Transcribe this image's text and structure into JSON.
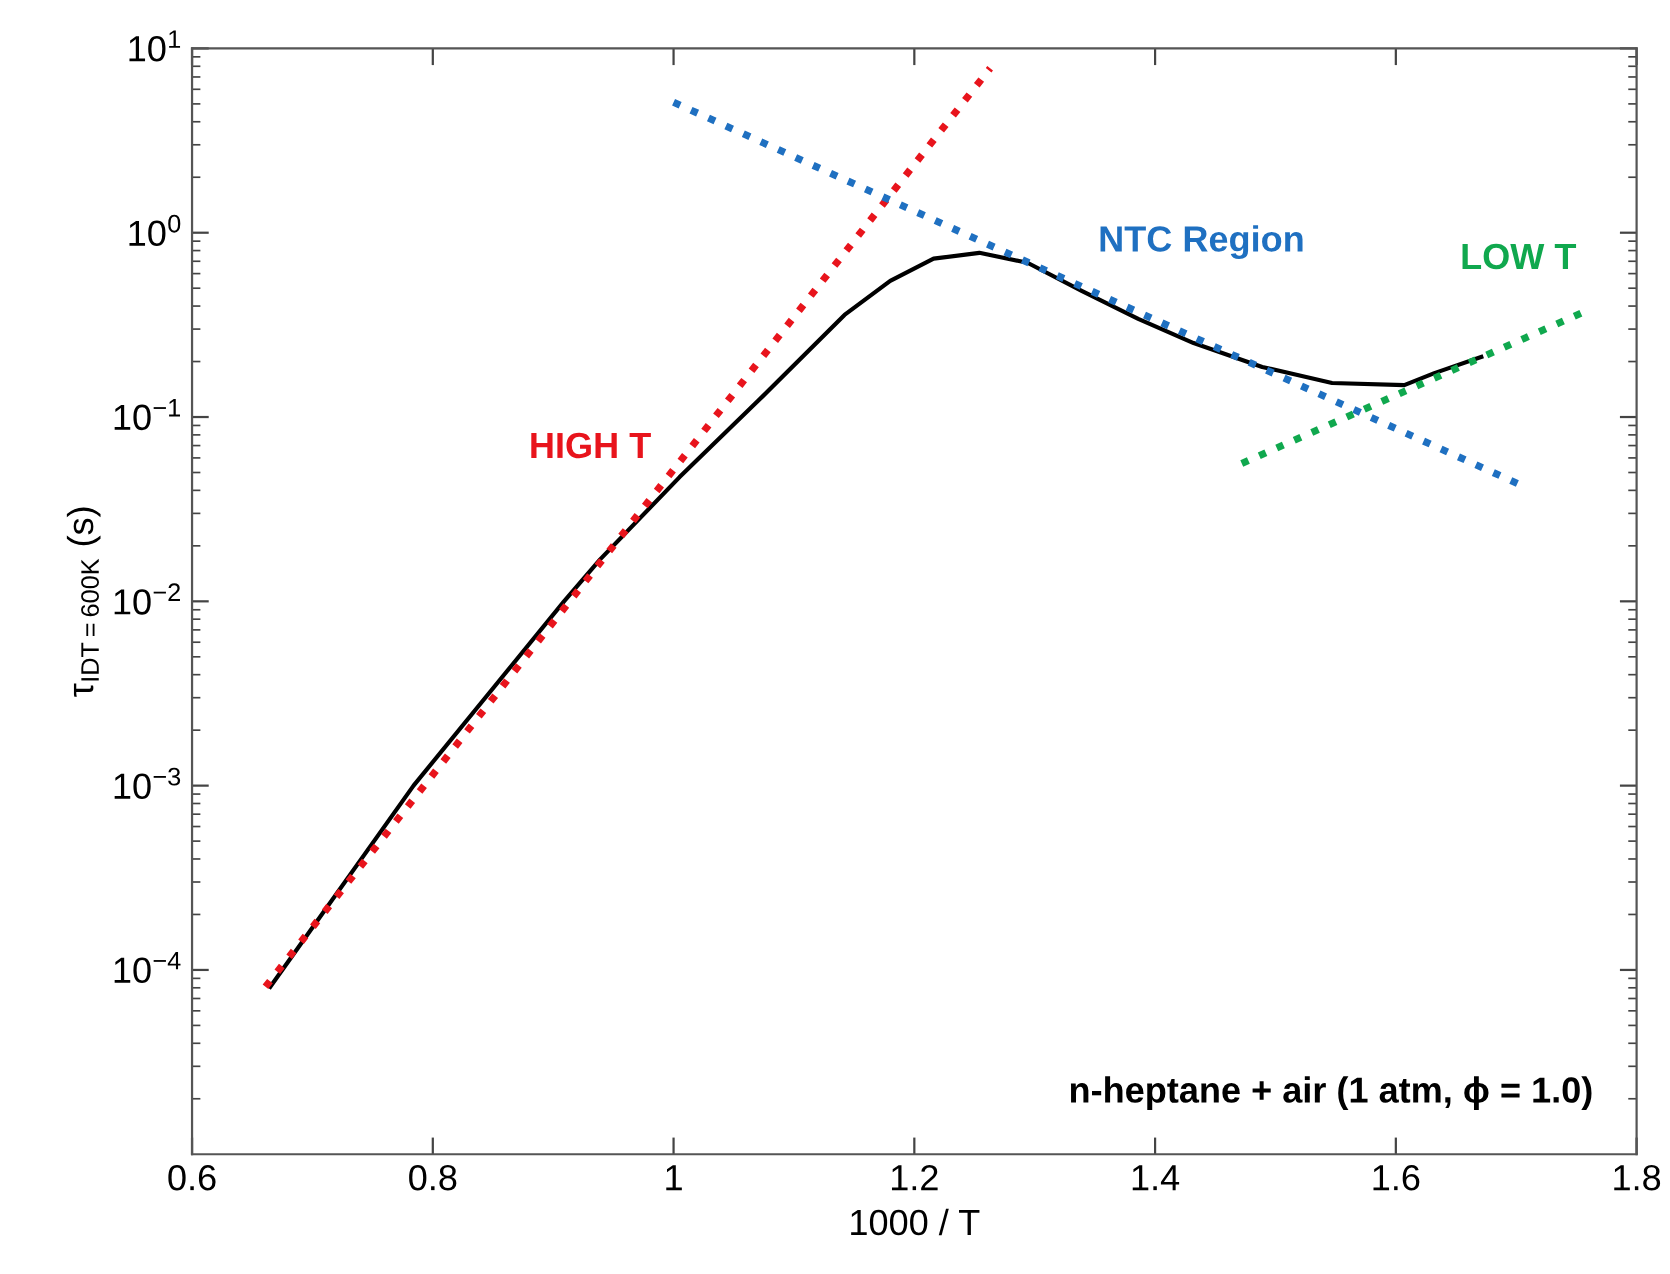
{
  "chart_data": {
    "type": "line",
    "xlabel": "1000 / T",
    "ylabel": "τ$_{IDT=600K}$ (s)",
    "log": "y",
    "xlim": [
      0.6,
      1.8
    ],
    "xticks": [
      0.6,
      0.8,
      1,
      1.2,
      1.4,
      1.6,
      1.8
    ],
    "ylim": [
      1e-05,
      10
    ],
    "yticks": [
      {
        "value": 0.0001,
        "label": "10$^{−4}$"
      },
      {
        "value": 0.001,
        "label": "10$^{−3}$"
      },
      {
        "value": 0.01,
        "label": "10$^{−2}$"
      },
      {
        "value": 0.1,
        "label": "10$^{−1}$"
      },
      {
        "value": 1,
        "label": "10$^{0}$"
      },
      {
        "value": 10,
        "label": "10$^{1}$"
      }
    ],
    "grid": false,
    "legend": false,
    "marker": "none",
    "series": [
      {
        "color": "#000000",
        "line_style": "solid",
        "x": [
          0.665,
          0.784,
          0.909,
          0.939,
          1.005,
          1.07,
          1.142,
          1.18,
          1.216,
          1.254,
          1.294,
          1.339,
          1.386,
          1.432,
          1.489,
          1.547,
          1.607,
          1.632,
          1.671
        ],
        "values": [
          8.1e-05,
          0.001,
          0.01,
          0.0169,
          0.0472,
          0.122,
          0.358,
          0.548,
          0.723,
          0.778,
          0.687,
          0.484,
          0.341,
          0.252,
          0.187,
          0.153,
          0.149,
          0.173,
          0.212
        ]
      },
      {
        "name": "HIGH T",
        "color": "#e8141c",
        "line_style": "dotted",
        "x": [
          0.661,
          1.263
        ],
        "values": [
          8.1e-05,
          7.8
        ]
      },
      {
        "name": "NTC Region",
        "color": "#1f70c1",
        "line_style": "dotted",
        "x": [
          1.0,
          1.703
        ],
        "values": [
          5.1,
          0.043
        ]
      },
      {
        "name": "LOW T",
        "color": "#10a84e",
        "line_style": "dotted",
        "x": [
          1.472,
          1.758
        ],
        "values": [
          0.056,
          0.376
        ]
      }
    ],
    "annotations": [
      "n-heptane + air (1 atm, ϕ = 1.0)"
    ]
  }
}
